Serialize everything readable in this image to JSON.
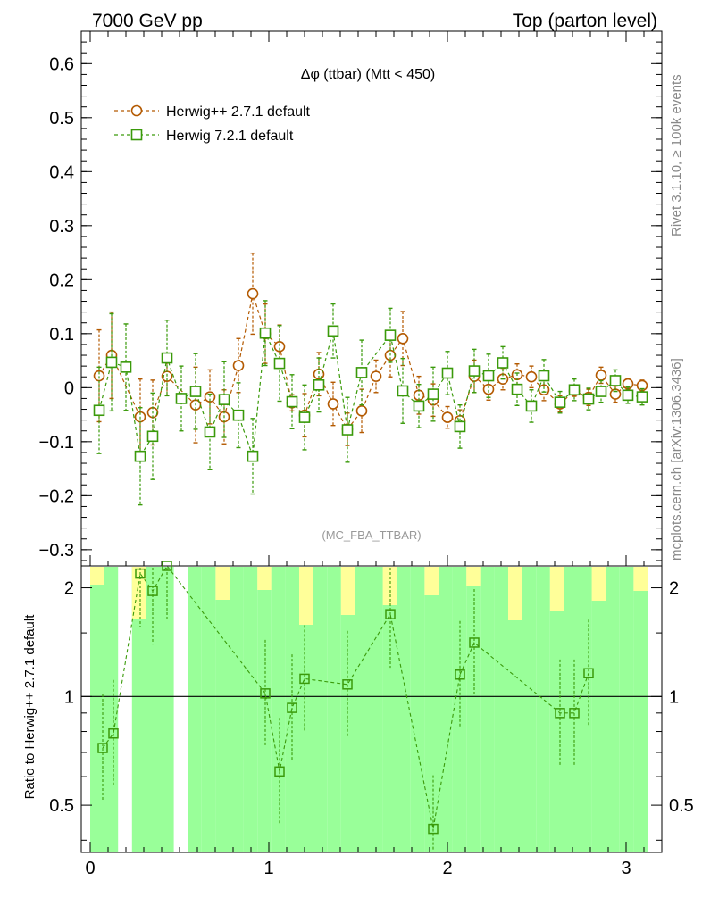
{
  "header": {
    "left": "7000 GeV pp",
    "right": "Top (parton level)"
  },
  "side": {
    "top": "Rivet 3.1.10, ≥ 100k events",
    "bottom": "mcplots.cern.ch [arXiv:1306.3436]"
  },
  "colors": {
    "herwigpp": "#b35900",
    "herwig7": "#3a9a0a",
    "band_green": "#99ff99",
    "band_yellow": "#ffff99"
  },
  "chart_data": {
    "type": "scatter",
    "title": "Δφ (ttbar) (Mtt < 450)",
    "subtitle": "(MC_FBA_TTBAR)",
    "xlabel": "",
    "ylabel": "",
    "xlim": [
      -0.05,
      3.2
    ],
    "ylim": [
      -0.33,
      0.66
    ],
    "x_ticks": [
      "0",
      "1",
      "2",
      "3"
    ],
    "y_ticks": [
      "0.6",
      "0.5",
      "0.4",
      "0.3",
      "0.2",
      "0.1",
      "0",
      "−0.1",
      "−0.2",
      "−0.3"
    ],
    "legend": {
      "position": "top-left"
    },
    "series": [
      {
        "name": "Herwig++ 2.7.1 default",
        "marker": "circle",
        "x": [
          0.05,
          0.12,
          0.28,
          0.35,
          0.43,
          0.59,
          0.67,
          0.75,
          0.83,
          0.91,
          0.98,
          1.06,
          1.13,
          1.2,
          1.28,
          1.36,
          1.44,
          1.52,
          1.6,
          1.68,
          1.75,
          1.84,
          1.92,
          2.0,
          2.07,
          2.15,
          2.23,
          2.31,
          2.39,
          2.47,
          2.54,
          2.63,
          2.71,
          2.79,
          2.86,
          2.94,
          3.01,
          3.09
        ],
        "values": [
          0.022,
          0.06,
          -0.054,
          -0.046,
          0.021,
          -0.032,
          -0.017,
          -0.054,
          0.041,
          0.174,
          0.1,
          0.076,
          -0.028,
          -0.051,
          0.025,
          -0.03,
          -0.077,
          -0.043,
          0.021,
          0.06,
          0.091,
          -0.014,
          -0.023,
          -0.055,
          -0.061,
          0.021,
          -0.003,
          0.016,
          0.024,
          0.02,
          -0.004,
          -0.03,
          -0.006,
          -0.018,
          0.023,
          -0.012,
          0.007,
          0.004
        ],
        "errors": [
          0.085,
          0.08,
          0.07,
          0.06,
          0.035,
          0.07,
          0.05,
          0.05,
          0.05,
          0.075,
          0.055,
          0.04,
          0.015,
          0.04,
          0.04,
          0.04,
          0.03,
          0.04,
          0.03,
          0.04,
          0.05,
          0.035,
          0.03,
          0.02,
          0.02,
          0.03,
          0.02,
          0.02,
          0.02,
          0.02,
          0.02,
          0.015,
          0.01,
          0.015,
          0.015,
          0.015,
          0.01,
          0.01
        ]
      },
      {
        "name": "Herwig 7.2.1 default",
        "marker": "square",
        "x": [
          0.05,
          0.12,
          0.2,
          0.28,
          0.35,
          0.43,
          0.51,
          0.59,
          0.67,
          0.75,
          0.83,
          0.91,
          0.98,
          1.06,
          1.13,
          1.2,
          1.28,
          1.36,
          1.44,
          1.52,
          1.68,
          1.75,
          1.84,
          1.92,
          2.0,
          2.07,
          2.15,
          2.23,
          2.31,
          2.39,
          2.47,
          2.54,
          2.63,
          2.71,
          2.79,
          2.86,
          2.94,
          3.01,
          3.09
        ],
        "values": [
          -0.042,
          0.047,
          0.038,
          -0.127,
          -0.09,
          0.055,
          -0.02,
          -0.007,
          -0.082,
          -0.022,
          -0.051,
          -0.127,
          0.101,
          0.045,
          -0.026,
          -0.055,
          0.005,
          0.105,
          -0.078,
          0.028,
          0.097,
          -0.006,
          -0.034,
          -0.012,
          0.027,
          -0.072,
          0.031,
          0.022,
          0.046,
          -0.003,
          -0.034,
          0.022,
          -0.027,
          -0.004,
          -0.021,
          -0.007,
          0.013,
          -0.014,
          -0.017
        ],
        "errors": [
          0.08,
          0.09,
          0.08,
          0.09,
          0.08,
          0.07,
          0.06,
          0.07,
          0.07,
          0.07,
          0.06,
          0.07,
          0.06,
          0.07,
          0.05,
          0.06,
          0.05,
          0.05,
          0.06,
          0.06,
          0.05,
          0.06,
          0.04,
          0.05,
          0.04,
          0.04,
          0.04,
          0.04,
          0.03,
          0.03,
          0.03,
          0.03,
          0.02,
          0.02,
          0.02,
          0.02,
          0.02,
          0.015,
          0.015
        ]
      }
    ],
    "ratio": {
      "ylabel": "Ratio to Herwig++ 2.7.1 default",
      "y_ticks": [
        "0.5",
        "1",
        "2"
      ],
      "ylim": [
        0.37,
        2.3
      ],
      "reference": 1,
      "points_x": [
        0.07,
        0.13,
        0.28,
        0.35,
        0.43,
        0.98,
        1.06,
        1.13,
        1.2,
        1.44,
        1.68,
        1.92,
        2.07,
        2.15,
        2.63,
        2.71,
        2.79
      ],
      "points_y": [
        0.72,
        0.79,
        2.19,
        1.96,
        2.3,
        1.02,
        0.62,
        0.93,
        1.12,
        1.08,
        1.69,
        0.43,
        1.15,
        1.41,
        0.9,
        0.9,
        1.16
      ]
    }
  }
}
